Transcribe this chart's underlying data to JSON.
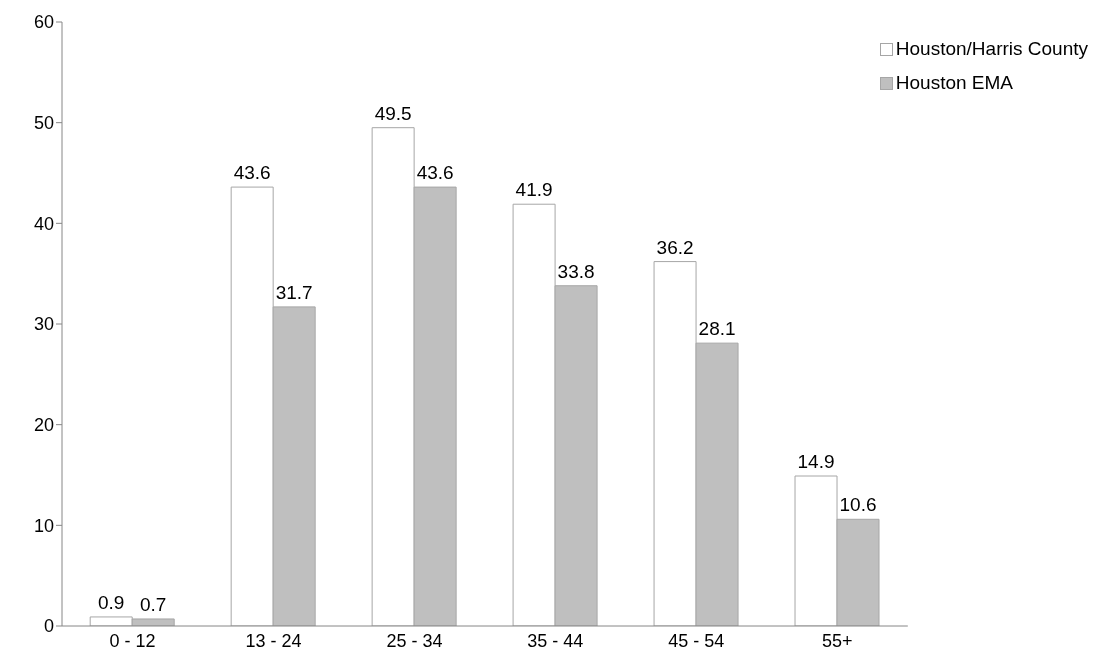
{
  "chart_data": {
    "type": "bar",
    "categories": [
      "0 - 12",
      "13 - 24",
      "25 - 34",
      "35 - 44",
      "45 - 54",
      "55+"
    ],
    "series": [
      {
        "name": "Houston/Harris County",
        "color": "#ffffff",
        "values": [
          0.9,
          43.6,
          49.5,
          41.9,
          36.2,
          14.9
        ]
      },
      {
        "name": "Houston EMA",
        "color": "#bfbfbf",
        "values": [
          0.7,
          31.7,
          43.6,
          33.8,
          28.1,
          10.6
        ]
      }
    ],
    "ylim": [
      0,
      60
    ],
    "yticks": [
      0,
      10,
      20,
      30,
      40,
      50,
      60
    ],
    "grid": false,
    "legend": "top right",
    "data_labels": true
  }
}
